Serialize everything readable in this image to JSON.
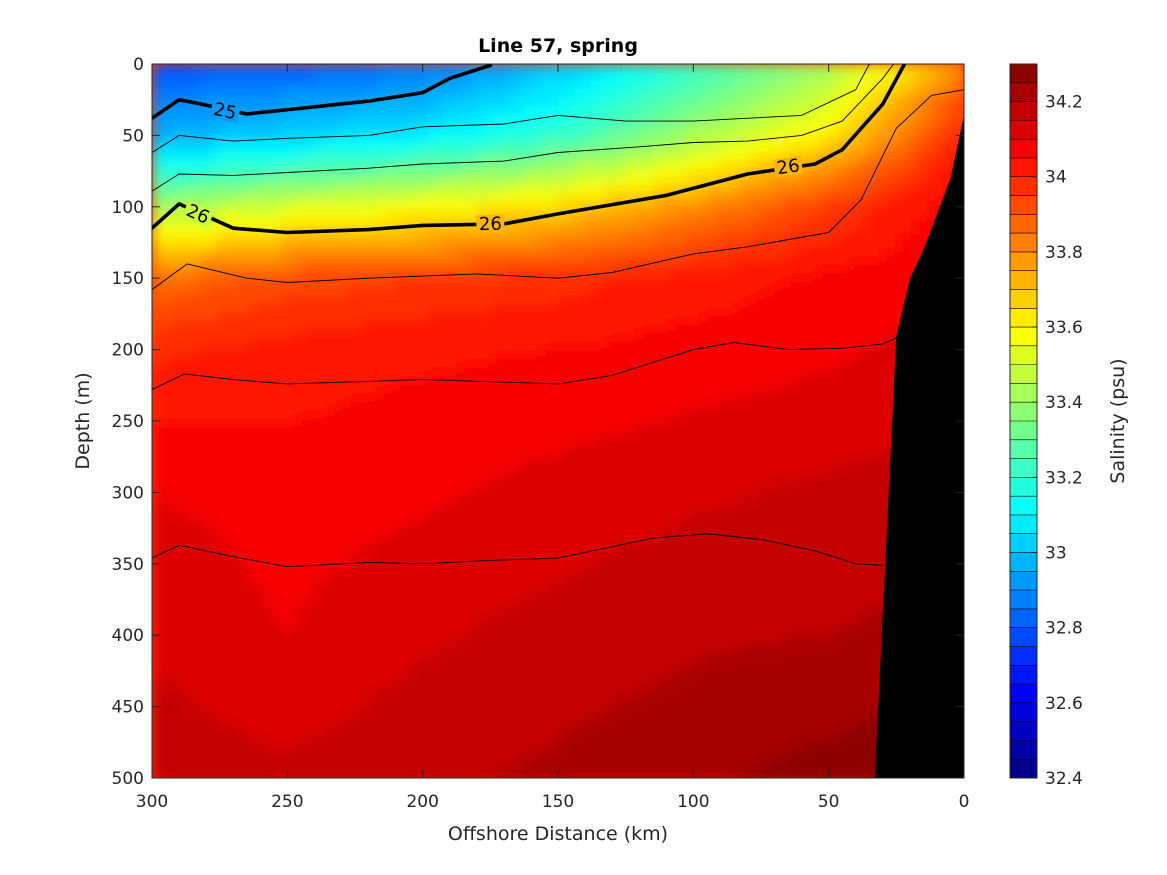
{
  "chart_data": {
    "type": "contour",
    "title": "Line 57, spring",
    "xlabel": "Offshore Distance (km)",
    "ylabel": "Depth (m)",
    "xlim": [
      300,
      0
    ],
    "ylim": [
      500,
      0
    ],
    "x_ticks": [
      "300",
      "250",
      "200",
      "150",
      "100",
      "50",
      "0"
    ],
    "y_ticks": [
      "0",
      "50",
      "100",
      "150",
      "200",
      "250",
      "300",
      "350",
      "400",
      "450",
      "500"
    ],
    "colorbar": {
      "label": "Salinity (psu)",
      "range": [
        32.4,
        34.3
      ],
      "ticks": [
        "32.4",
        "32.6",
        "32.8",
        "33",
        "33.2",
        "33.4",
        "33.6",
        "33.8",
        "34",
        "34.2"
      ],
      "colormap": "jet"
    },
    "salinity_field": {
      "x_km": [
        300,
        250,
        200,
        150,
        100,
        50,
        0
      ],
      "depth_m": [
        0,
        25,
        50,
        75,
        100,
        150,
        200,
        300,
        400,
        500
      ],
      "values": [
        [
          32.78,
          32.8,
          32.85,
          33.0,
          33.2,
          33.4,
          33.8
        ],
        [
          32.88,
          32.92,
          32.96,
          33.1,
          33.3,
          33.5,
          33.92
        ],
        [
          32.96,
          33.02,
          33.08,
          33.2,
          33.42,
          33.62,
          34.0
        ],
        [
          33.15,
          33.25,
          33.32,
          33.42,
          33.6,
          33.8,
          34.05
        ],
        [
          33.4,
          33.52,
          33.58,
          33.66,
          33.8,
          33.95,
          34.08
        ],
        [
          33.85,
          33.92,
          33.95,
          33.98,
          34.02,
          34.06,
          34.1
        ],
        [
          33.99,
          34.02,
          34.04,
          34.05,
          34.07,
          34.09,
          34.12
        ],
        [
          34.1,
          34.08,
          34.09,
          34.12,
          34.14,
          34.16,
          34.18
        ],
        [
          34.14,
          34.1,
          34.14,
          34.17,
          34.19,
          34.2,
          34.22
        ],
        [
          34.18,
          34.16,
          34.19,
          34.21,
          34.24,
          34.27,
          34.3
        ]
      ]
    },
    "density_contours": [
      {
        "label": "25",
        "heavy": true,
        "points": [
          [
            300,
            38
          ],
          [
            290,
            25
          ],
          [
            282,
            28
          ],
          [
            265,
            35
          ],
          [
            240,
            30
          ],
          [
            220,
            26
          ],
          [
            200,
            20
          ],
          [
            190,
            10
          ],
          [
            175,
            1
          ]
        ]
      },
      {
        "label": "26",
        "heavy": true,
        "points": [
          [
            300,
            115
          ],
          [
            290,
            98
          ],
          [
            270,
            115
          ],
          [
            250,
            118
          ],
          [
            220,
            116
          ],
          [
            200,
            113
          ],
          [
            170,
            112
          ],
          [
            150,
            105
          ],
          [
            110,
            92
          ],
          [
            80,
            77
          ],
          [
            55,
            70
          ],
          [
            45,
            60
          ],
          [
            30,
            28
          ],
          [
            22,
            0
          ]
        ]
      },
      {
        "label": "",
        "heavy": false,
        "points": [
          [
            300,
            62
          ],
          [
            290,
            50
          ],
          [
            270,
            54
          ],
          [
            250,
            52
          ],
          [
            220,
            50
          ],
          [
            200,
            44
          ],
          [
            170,
            42
          ],
          [
            150,
            36
          ],
          [
            125,
            40
          ],
          [
            100,
            40
          ],
          [
            60,
            36
          ],
          [
            40,
            18
          ],
          [
            35,
            0
          ]
        ]
      },
      {
        "label": "",
        "heavy": false,
        "points": [
          [
            300,
            89
          ],
          [
            290,
            77
          ],
          [
            270,
            78
          ],
          [
            250,
            76
          ],
          [
            220,
            73
          ],
          [
            200,
            70
          ],
          [
            170,
            68
          ],
          [
            150,
            62
          ],
          [
            120,
            58
          ],
          [
            100,
            55
          ],
          [
            80,
            54
          ],
          [
            60,
            50
          ],
          [
            45,
            40
          ],
          [
            30,
            10
          ],
          [
            26,
            0
          ]
        ]
      },
      {
        "label": "",
        "heavy": false,
        "points": [
          [
            300,
            158
          ],
          [
            287,
            140
          ],
          [
            265,
            150
          ],
          [
            250,
            153
          ],
          [
            220,
            150
          ],
          [
            180,
            147
          ],
          [
            150,
            150
          ],
          [
            130,
            146
          ],
          [
            100,
            133
          ],
          [
            80,
            128
          ],
          [
            50,
            118
          ],
          [
            38,
            95
          ],
          [
            25,
            45
          ],
          [
            12,
            22
          ],
          [
            0,
            18
          ]
        ]
      },
      {
        "label": "",
        "heavy": false,
        "points": [
          [
            300,
            228
          ],
          [
            288,
            217
          ],
          [
            270,
            221
          ],
          [
            250,
            224
          ],
          [
            200,
            221
          ],
          [
            150,
            224
          ],
          [
            130,
            218
          ],
          [
            100,
            200
          ],
          [
            85,
            195
          ],
          [
            65,
            200
          ],
          [
            45,
            199
          ],
          [
            30,
            196
          ],
          [
            23,
            190
          ]
        ]
      },
      {
        "label": "",
        "heavy": false,
        "points": [
          [
            300,
            346
          ],
          [
            290,
            337
          ],
          [
            270,
            345
          ],
          [
            250,
            352
          ],
          [
            220,
            349
          ],
          [
            200,
            350
          ],
          [
            180,
            348
          ],
          [
            150,
            346
          ],
          [
            130,
            338
          ],
          [
            115,
            332
          ],
          [
            95,
            329
          ],
          [
            75,
            333
          ],
          [
            55,
            341
          ],
          [
            40,
            350
          ],
          [
            30,
            351
          ]
        ]
      }
    ],
    "bathymetry_depth_m": [
      [
        0,
        36
      ],
      [
        5,
        80
      ],
      [
        15,
        130
      ],
      [
        20,
        150
      ],
      [
        25,
        190
      ],
      [
        33,
        500
      ]
    ]
  }
}
